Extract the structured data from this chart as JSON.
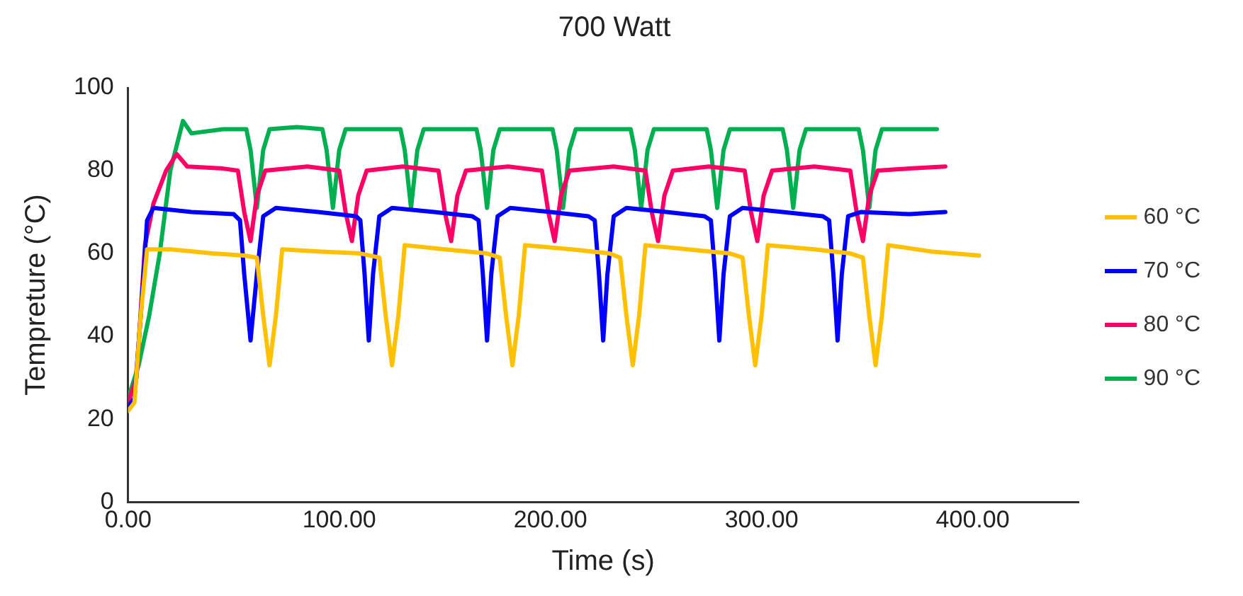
{
  "chart_data": {
    "type": "line",
    "title": "700 Watt",
    "xlabel": "Time (s)",
    "ylabel": "Tempreture (°C)",
    "xlim": [
      0,
      450
    ],
    "xticks": [
      {
        "value": 0,
        "label": "0.00"
      },
      {
        "value": 100,
        "label": "100.00"
      },
      {
        "value": 200,
        "label": "200.00"
      },
      {
        "value": 300,
        "label": "300.00"
      },
      {
        "value": 400,
        "label": "400.00"
      }
    ],
    "ylim": [
      0,
      100
    ],
    "yticks": [
      0,
      20,
      40,
      60,
      80,
      100
    ],
    "grid": false,
    "legend": "right",
    "marker": "none",
    "line_style": "solid",
    "series": [
      {
        "name": "60 °C",
        "color": "#ffc000",
        "x": [
          0,
          3,
          6,
          9,
          20,
          40,
          55,
          61,
          64,
          67,
          70,
          73,
          90,
          110,
          119,
          122,
          125,
          128,
          131,
          150,
          170,
          176,
          179,
          182,
          185,
          188,
          210,
          228,
          233,
          236,
          239,
          242,
          245,
          265,
          285,
          291,
          294,
          297,
          300,
          303,
          325,
          342,
          348,
          351,
          354,
          357,
          360,
          380,
          403
        ],
        "values": [
          22,
          24,
          45,
          61,
          61,
          60,
          59.5,
          59,
          45,
          33,
          45,
          61,
          60.5,
          60,
          59,
          45,
          33,
          45,
          62,
          61,
          60,
          59,
          45,
          33,
          45,
          62,
          61,
          60,
          59,
          45,
          33,
          45,
          62,
          61,
          60,
          59,
          45,
          33,
          45,
          62,
          61,
          60,
          59,
          45,
          33,
          45,
          62,
          60.5,
          59.5
        ]
      },
      {
        "name": "70 °C",
        "color": "#0000ff",
        "x": [
          0,
          3,
          6,
          9,
          12,
          30,
          50,
          53,
          55,
          58,
          61,
          64,
          70,
          90,
          108,
          110,
          112,
          114,
          116,
          119,
          125,
          145,
          163,
          166,
          168,
          170,
          172,
          175,
          181,
          200,
          218,
          221,
          223,
          225,
          227,
          230,
          236,
          255,
          273,
          276,
          278,
          280,
          282,
          285,
          291,
          310,
          329,
          332,
          334,
          336,
          338,
          341,
          347,
          370,
          387
        ],
        "values": [
          23,
          25,
          45,
          68,
          71,
          70,
          69.5,
          68,
          55,
          39,
          55,
          69,
          71,
          70,
          69,
          68,
          55,
          39,
          55,
          69,
          71,
          70,
          69,
          68,
          55,
          39,
          55,
          69,
          71,
          70,
          69,
          68,
          55,
          39,
          55,
          69,
          71,
          70,
          69,
          68,
          55,
          39,
          55,
          69,
          71,
          70,
          69,
          68,
          55,
          39,
          55,
          69,
          70,
          69.5,
          70
        ]
      },
      {
        "name": "80 °C",
        "color": "#ff0066",
        "x": [
          0,
          4,
          8,
          12,
          18,
          23,
          28,
          45,
          52,
          55,
          58,
          61,
          65,
          85,
          100,
          103,
          106,
          109,
          113,
          130,
          147,
          150,
          153,
          156,
          160,
          180,
          196,
          199,
          202,
          205,
          209,
          230,
          245,
          248,
          251,
          254,
          258,
          275,
          292,
          295,
          298,
          301,
          305,
          325,
          342,
          345,
          348,
          351,
          355,
          370,
          387
        ],
        "values": [
          24,
          30,
          62,
          72,
          80,
          84,
          81,
          80.5,
          80,
          70,
          63,
          74,
          80,
          81,
          80,
          70,
          63,
          74,
          80,
          81,
          80,
          70,
          63,
          74,
          80,
          81,
          80,
          70,
          63,
          74,
          80,
          81,
          80,
          70,
          63,
          74,
          80,
          81,
          80,
          70,
          63,
          74,
          80,
          81,
          80,
          70,
          63,
          74,
          80,
          80.5,
          81
        ]
      },
      {
        "name": "90 °C",
        "color": "#00b050",
        "x": [
          0,
          5,
          10,
          15,
          20,
          24,
          26,
          30,
          45,
          56,
          58,
          61,
          64,
          67,
          80,
          92,
          94,
          97,
          100,
          103,
          115,
          129,
          131,
          134,
          137,
          140,
          155,
          165,
          167,
          170,
          173,
          176,
          190,
          201,
          203,
          206,
          209,
          212,
          225,
          238,
          240,
          243,
          246,
          249,
          262,
          274,
          276,
          279,
          282,
          285,
          298,
          310,
          312,
          315,
          318,
          321,
          335,
          346,
          348,
          351,
          354,
          357,
          370,
          383
        ],
        "values": [
          25,
          33,
          45,
          60,
          80,
          88,
          92,
          89,
          90,
          90,
          85,
          71,
          85,
          90,
          90.5,
          90,
          85,
          71,
          85,
          90,
          90,
          90,
          85,
          71,
          85,
          90,
          90,
          90,
          85,
          71,
          85,
          90,
          90,
          90,
          85,
          71,
          85,
          90,
          90,
          90,
          85,
          71,
          85,
          90,
          90,
          90,
          85,
          71,
          85,
          90,
          90,
          90,
          85,
          71,
          85,
          90,
          90,
          90,
          85,
          71,
          85,
          90,
          90,
          90
        ]
      }
    ]
  }
}
